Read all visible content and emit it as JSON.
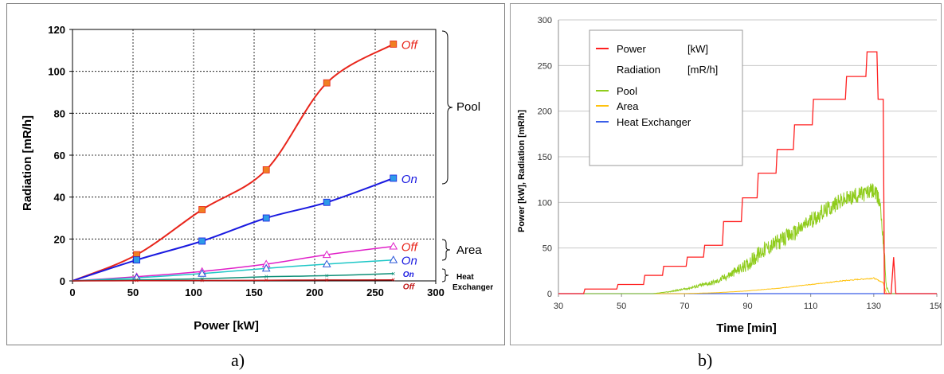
{
  "captions": {
    "a": "a)",
    "b": "b)"
  },
  "chart_data": [
    {
      "type": "line",
      "xlabel": "Power [kW]",
      "ylabel": "Radiation [mR/h]",
      "xlim": [
        0,
        300
      ],
      "ylim": [
        0,
        120
      ],
      "xticks": [
        "0",
        "50",
        "100",
        "150",
        "200",
        "250",
        "300"
      ],
      "yticks": [
        "0",
        "20",
        "40",
        "60",
        "80",
        "100",
        "120"
      ],
      "grid": true,
      "series": [
        {
          "name": "Off",
          "group": "Pool",
          "color": "#e8251b",
          "marker": "square",
          "marker_color": "#f07f22",
          "x": [
            0,
            53,
            107,
            160,
            210,
            265
          ],
          "y": [
            0,
            12.5,
            34,
            53,
            94.5,
            113
          ]
        },
        {
          "name": "On",
          "group": "Pool",
          "color": "#1a1ae0",
          "marker": "square",
          "marker_color": "#2e9be8",
          "x": [
            0,
            53,
            107,
            160,
            210,
            265
          ],
          "y": [
            0,
            10,
            19,
            30,
            37.5,
            49
          ]
        },
        {
          "name": "Off",
          "group": "Area",
          "color": "#e020c8",
          "marker": "triangle",
          "x": [
            0,
            53,
            107,
            160,
            210,
            265
          ],
          "y": [
            0,
            2,
            4.5,
            8,
            12.5,
            16.5
          ]
        },
        {
          "name": "On",
          "group": "Area",
          "color": "#1fc7c7",
          "marker": "triangle",
          "x": [
            0,
            53,
            107,
            160,
            210,
            265
          ],
          "y": [
            0,
            1.5,
            3.5,
            6,
            8,
            10
          ]
        },
        {
          "name": "On",
          "group": "Heat Exchanger",
          "color": "#0f8f78",
          "marker": "x",
          "x": [
            0,
            53,
            107,
            160,
            210,
            265
          ],
          "y": [
            0,
            0.5,
            1,
            2,
            2.5,
            3.5
          ]
        },
        {
          "name": "Off",
          "group": "Heat Exchanger",
          "color": "#c01818",
          "marker": "x",
          "x": [
            0,
            53,
            107,
            160,
            210,
            265
          ],
          "y": [
            0,
            0.1,
            0.2,
            0.3,
            0.4,
            0.5
          ]
        }
      ],
      "group_labels": {
        "pool": "Pool",
        "area": "Area",
        "heat_1": "Heat",
        "heat_2": "Exchanger"
      },
      "annotation_colors": {
        "off": "#e8251b",
        "on": "#1a1ae0",
        "off_small": "#c01818"
      }
    },
    {
      "type": "line",
      "xlabel": "Time [min]",
      "ylabel": "Power [kW],  Radiation [mR/h]",
      "xlim": [
        30,
        150
      ],
      "ylim": [
        0,
        300
      ],
      "xticks": [
        "30",
        "50",
        "70",
        "90",
        "110",
        "130",
        "150"
      ],
      "yticks": [
        "0",
        "50",
        "100",
        "150",
        "200",
        "250",
        "300"
      ],
      "grid": "horizontal",
      "legend": {
        "placement": "top-left",
        "entries": [
          {
            "label": "Power",
            "unit": "[kW]",
            "color": "#ff2020"
          },
          {
            "label": "Radiation",
            "unit": "[mR/h]",
            "color": null
          },
          {
            "label": "Pool",
            "color": "#8fcc1c"
          },
          {
            "label": "Area",
            "color": "#ffc20e"
          },
          {
            "label": "Heat Exchanger",
            "color": "#3a5ee8"
          }
        ]
      },
      "series": [
        {
          "name": "Power",
          "color": "#ff2020",
          "steps": [
            [
              38,
              5
            ],
            [
              48.5,
              10
            ],
            [
              57,
              20
            ],
            [
              63,
              30
            ],
            [
              70.5,
              40
            ],
            [
              76,
              53
            ],
            [
              82,
              79
            ],
            [
              88,
              105
            ],
            [
              93,
              132
            ],
            [
              99,
              158
            ],
            [
              104.5,
              185
            ],
            [
              110.5,
              213
            ],
            [
              121,
              238
            ],
            [
              127.5,
              265
            ],
            [
              131,
              213
            ],
            [
              133,
              0
            ]
          ],
          "spike": [
            [
              135.5,
              0
            ],
            [
              136.3,
              40
            ],
            [
              137,
              0
            ]
          ]
        },
        {
          "name": "Pool",
          "color": "#8fcc1c",
          "trend": [
            [
              30,
              0
            ],
            [
              60,
              0
            ],
            [
              65,
              2
            ],
            [
              70,
              5
            ],
            [
              75,
              9
            ],
            [
              80,
              13
            ],
            [
              85,
              22
            ],
            [
              90,
              32
            ],
            [
              95,
              48
            ],
            [
              100,
              57
            ],
            [
              105,
              67
            ],
            [
              110,
              80
            ],
            [
              115,
              92
            ],
            [
              120,
              102
            ],
            [
              125,
              108
            ],
            [
              130,
              113
            ],
            [
              132,
              100
            ],
            [
              133,
              60
            ],
            [
              134,
              8
            ],
            [
              135,
              0
            ],
            [
              150,
              0
            ]
          ]
        },
        {
          "name": "Area",
          "color": "#ffc20e",
          "trend": [
            [
              30,
              0
            ],
            [
              70,
              0
            ],
            [
              80,
              1
            ],
            [
              90,
              3
            ],
            [
              100,
              6
            ],
            [
              110,
              10
            ],
            [
              120,
              14
            ],
            [
              130,
              17
            ],
            [
              133,
              12
            ],
            [
              134,
              0
            ],
            [
              150,
              0
            ]
          ]
        },
        {
          "name": "Heat Exchanger",
          "color": "#3a5ee8",
          "values": [
            [
              30,
              0
            ],
            [
              150,
              0
            ]
          ]
        }
      ]
    }
  ]
}
